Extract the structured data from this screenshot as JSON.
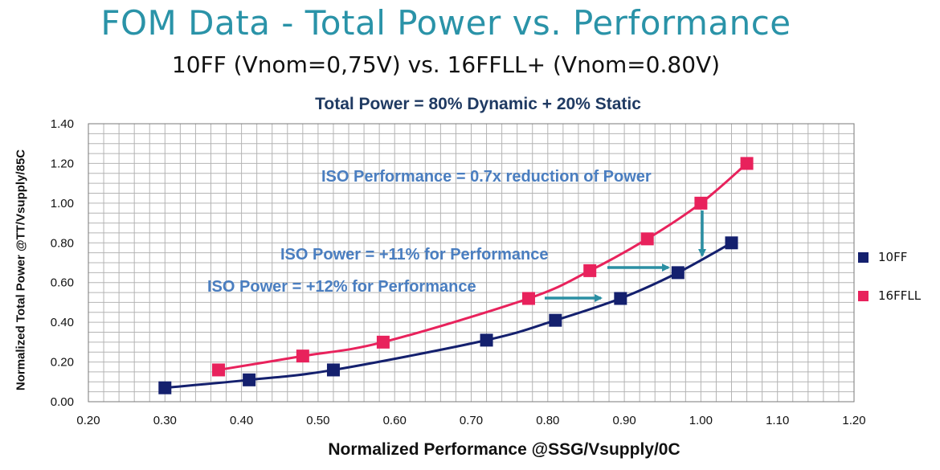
{
  "title": "FOM Data - Total Power vs. Performance",
  "subtitle": "10FF (Vnom=0,75V) vs. 16FFLL+ (Vnom=0.80V)",
  "chart_data": {
    "type": "line",
    "title": "Total Power = 80% Dynamic + 20% Static",
    "xlabel": "Normalized Performance @SSG/Vsupply/0C",
    "ylabel": "Normalized Total Power @TT/Vsupply/85C",
    "xlim": [
      0.2,
      1.2
    ],
    "ylim": [
      0.0,
      1.4
    ],
    "grid": true,
    "x_ticks": [
      "0.20",
      "0.30",
      "0.40",
      "0.50",
      "0.60",
      "0.70",
      "0.80",
      "0.90",
      "1.00",
      "1.10",
      "1.20"
    ],
    "y_ticks": [
      "0.00",
      "0.20",
      "0.40",
      "0.60",
      "0.80",
      "1.00",
      "1.20",
      "1.40"
    ],
    "legend_position": "right",
    "series": [
      {
        "name": "10FF",
        "color": "#14206e",
        "x": [
          0.3,
          0.41,
          0.52,
          0.72,
          0.81,
          0.895,
          0.97,
          1.04
        ],
        "y": [
          0.07,
          0.11,
          0.16,
          0.31,
          0.41,
          0.52,
          0.65,
          0.8
        ]
      },
      {
        "name": "16FFLL",
        "color": "#e8225c",
        "x": [
          0.37,
          0.48,
          0.585,
          0.775,
          0.855,
          0.93,
          1.0,
          1.06
        ],
        "y": [
          0.16,
          0.23,
          0.3,
          0.52,
          0.66,
          0.82,
          1.0,
          1.2
        ]
      }
    ],
    "annotations": [
      {
        "text": "ISO Performance = 0.7x reduction of Power"
      },
      {
        "text": "ISO Power = +11% for Performance"
      },
      {
        "text": "ISO Power = +12% for Performance"
      }
    ]
  }
}
